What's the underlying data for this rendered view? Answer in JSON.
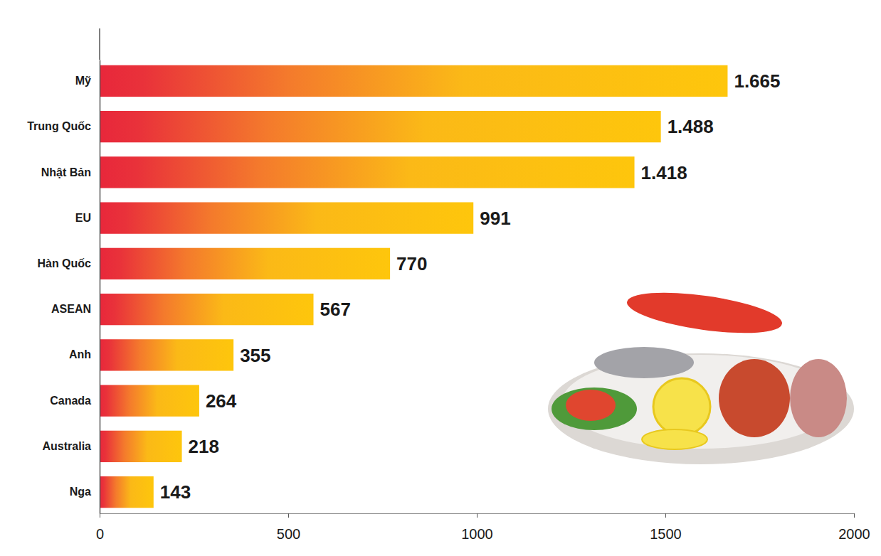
{
  "chart_data": {
    "type": "bar",
    "orientation": "horizontal",
    "categories": [
      "Mỹ",
      "Trung Quốc",
      "Nhật Bản",
      "EU",
      "Hàn Quốc",
      "ASEAN",
      "Anh",
      "Canada",
      "Australia",
      "Nga"
    ],
    "values": [
      1665,
      1488,
      1418,
      991,
      770,
      567,
      355,
      264,
      218,
      143
    ],
    "value_labels": [
      "1.665",
      "1.488",
      "1.418",
      "991",
      "770",
      "567",
      "355",
      "264",
      "218",
      "143"
    ],
    "data_labels": true,
    "xlim": [
      0,
      2000
    ],
    "xticks": [
      0,
      500,
      1000,
      1500,
      2000
    ],
    "grid": false
  }
}
